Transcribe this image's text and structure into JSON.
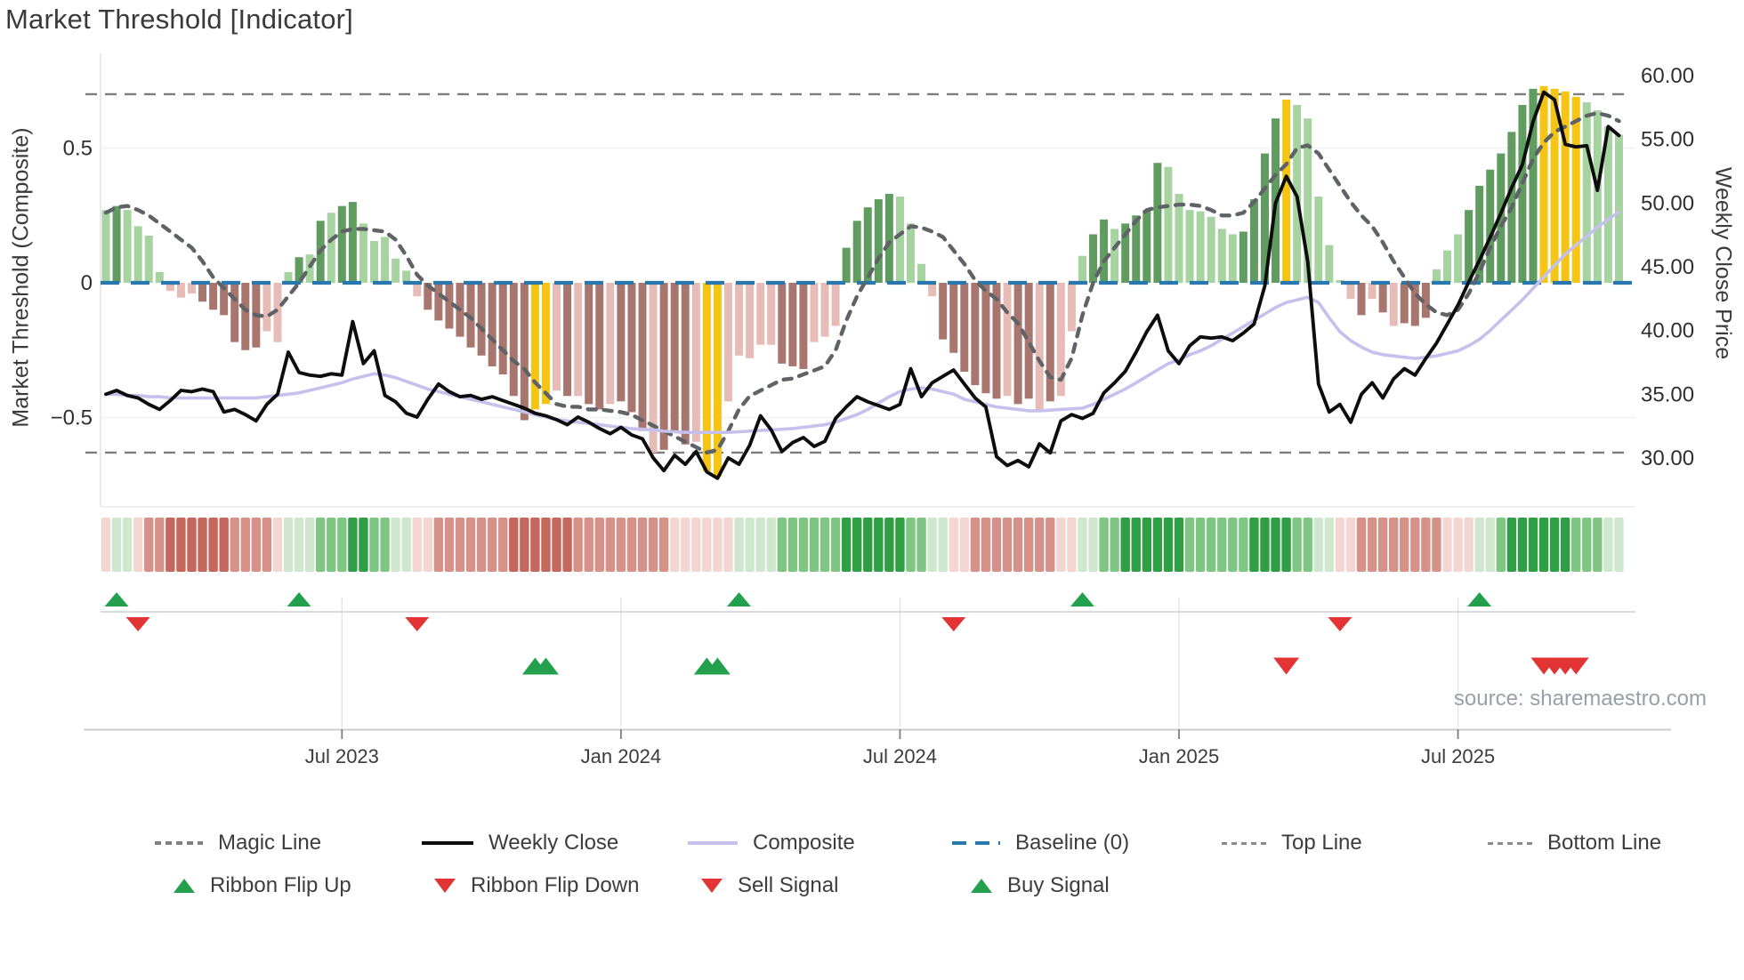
{
  "title": "Market Threshold [Indicator]",
  "source_note": "source: sharemaestro.com",
  "left_axis": {
    "label": "Market Threshold (Composite)",
    "ticks": [
      {
        "value": 0.5,
        "label": "0.5"
      },
      {
        "value": 0,
        "label": "0"
      },
      {
        "value": -0.5,
        "label": "−0.5"
      }
    ]
  },
  "right_axis": {
    "label": "Weekly Close Price",
    "ticks": [
      {
        "value": 60,
        "label": "60.00"
      },
      {
        "value": 55,
        "label": "55.00"
      },
      {
        "value": 50,
        "label": "50.00"
      },
      {
        "value": 45,
        "label": "45.00"
      },
      {
        "value": 40,
        "label": "40.00"
      },
      {
        "value": 35,
        "label": "35.00"
      },
      {
        "value": 30,
        "label": "30.00"
      }
    ]
  },
  "x_axis": {
    "ticks": [
      {
        "week": 22,
        "label": "Jul 2023"
      },
      {
        "week": 48,
        "label": "Jan 2024"
      },
      {
        "week": 74,
        "label": "Jul 2024"
      },
      {
        "week": 100,
        "label": "Jan 2025"
      },
      {
        "week": 126,
        "label": "Jul 2025"
      }
    ]
  },
  "reference_lines": {
    "baseline": 0,
    "top_line": 0.7,
    "bottom_line": -0.63
  },
  "colors": {
    "bar_light_green": "#a6d3a0",
    "bar_dark_green": "#609c60",
    "bar_yellow": "#f6c513",
    "bar_light_red": "#e8bcb6",
    "bar_dark_red": "#a8766e",
    "baseline_blue": "#2878af",
    "magic_gray": "#5f6267",
    "composite_lavender": "#c6c0ed",
    "weekly_black": "#0d0d0d",
    "ref_dash_gray": "#7d7d7d",
    "ribbon_red_pale": "#f3d6d2",
    "ribbon_red_mid": "#d69288",
    "ribbon_red_dark": "#c4675c",
    "ribbon_green_pale": "#cfe8cd",
    "ribbon_green_mid": "#7fc684",
    "ribbon_green_dark": "#2f9e44",
    "signal_green": "#22a04e",
    "signal_red": "#e23434"
  },
  "chart_data": {
    "type": "bar+line",
    "title": "Market Threshold [Indicator]",
    "weeks": 142,
    "ylabel_left": "Market Threshold (Composite)",
    "ylabel_right": "Weekly Close Price",
    "ylim_left": [
      -0.85,
      0.85
    ],
    "ylim_right": [
      26.0,
      61.5
    ],
    "grid": "horizontal-faint",
    "legend_position": "bottom",
    "bars": {
      "name": "Market Threshold histogram",
      "values": [
        0.27,
        0.285,
        0.27,
        0.21,
        0.175,
        0.04,
        -0.03,
        -0.055,
        -0.04,
        -0.07,
        -0.1,
        -0.12,
        -0.22,
        -0.25,
        -0.24,
        -0.18,
        -0.22,
        0.04,
        0.095,
        0.105,
        0.23,
        0.26,
        0.285,
        0.3,
        0.22,
        0.155,
        0.17,
        0.09,
        0.045,
        -0.05,
        -0.1,
        -0.14,
        -0.17,
        -0.2,
        -0.24,
        -0.27,
        -0.31,
        -0.34,
        -0.42,
        -0.51,
        -0.47,
        -0.45,
        -0.4,
        -0.42,
        -0.42,
        -0.45,
        -0.47,
        -0.45,
        -0.44,
        -0.48,
        -0.55,
        -0.63,
        -0.62,
        -0.55,
        -0.6,
        -0.59,
        -0.7,
        -0.72,
        -0.44,
        -0.27,
        -0.28,
        -0.23,
        -0.23,
        -0.3,
        -0.31,
        -0.32,
        -0.22,
        -0.2,
        -0.16,
        0.13,
        0.23,
        0.28,
        0.31,
        0.33,
        0.32,
        0.22,
        0.07,
        -0.05,
        -0.21,
        -0.26,
        -0.33,
        -0.38,
        -0.41,
        -0.43,
        -0.42,
        -0.45,
        -0.43,
        -0.47,
        -0.44,
        -0.42,
        -0.18,
        0.1,
        0.18,
        0.235,
        0.2,
        0.22,
        0.25,
        0.27,
        0.445,
        0.43,
        0.33,
        0.27,
        0.265,
        0.245,
        0.2,
        0.18,
        0.19,
        0.31,
        0.48,
        0.61,
        0.68,
        0.66,
        0.61,
        0.32,
        0.14,
        0.01,
        -0.06,
        -0.12,
        -0.06,
        -0.11,
        -0.16,
        -0.15,
        -0.16,
        -0.13,
        0.05,
        0.12,
        0.18,
        0.27,
        0.36,
        0.42,
        0.48,
        0.56,
        0.66,
        0.72,
        0.73,
        0.72,
        0.71,
        0.69,
        0.67,
        0.64,
        0.58,
        0.55
      ],
      "color_tokens": [
        "lg",
        "dg",
        "lg",
        "lg",
        "lg",
        "lg",
        "lr",
        "lr",
        "lr",
        "dr",
        "dr",
        "dr",
        "dr",
        "dr",
        "dr",
        "lr",
        "lr",
        "lg",
        "dg",
        "lg",
        "dg",
        "lg",
        "dg",
        "dg",
        "lg",
        "lg",
        "lg",
        "lg",
        "lg",
        "lr",
        "dr",
        "dr",
        "dr",
        "dr",
        "dr",
        "dr",
        "dr",
        "dr",
        "dr",
        "dr",
        "yl",
        "yl",
        "lr",
        "dr",
        "lr",
        "dr",
        "dr",
        "lr",
        "dr",
        "dr",
        "dr",
        "lr",
        "dr",
        "dr",
        "dr",
        "lr",
        "yl",
        "yl",
        "lr",
        "lr",
        "lr",
        "lr",
        "lr",
        "dr",
        "dr",
        "dr",
        "lr",
        "lr",
        "lr",
        "dg",
        "dg",
        "dg",
        "dg",
        "dg",
        "lg",
        "lg",
        "lg",
        "lr",
        "dr",
        "dr",
        "dr",
        "dr",
        "dr",
        "dr",
        "lr",
        "dr",
        "dr",
        "lr",
        "dr",
        "lr",
        "lr",
        "lg",
        "dg",
        "dg",
        "lg",
        "dg",
        "dg",
        "dg",
        "dg",
        "lg",
        "lg",
        "lg",
        "lg",
        "lg",
        "lg",
        "lg",
        "dg",
        "dg",
        "dg",
        "dg",
        "yl",
        "lg",
        "lg",
        "lg",
        "lg",
        "lg",
        "lr",
        "dr",
        "lr",
        "dr",
        "lr",
        "dr",
        "dr",
        "dr",
        "lg",
        "lg",
        "lg",
        "dg",
        "dg",
        "dg",
        "dg",
        "dg",
        "dg",
        "dg",
        "yl",
        "yl",
        "yl",
        "yl",
        "lg",
        "lg",
        "lg",
        "lg"
      ]
    },
    "weekly_close": [
      35.0,
      35.3,
      34.9,
      34.7,
      34.2,
      33.8,
      34.5,
      35.3,
      35.2,
      35.4,
      35.2,
      33.6,
      33.8,
      33.4,
      32.9,
      34.2,
      35.0,
      38.3,
      36.7,
      36.5,
      36.4,
      36.6,
      36.5,
      40.7,
      37.4,
      38.4,
      34.9,
      34.4,
      33.5,
      33.2,
      34.6,
      35.8,
      35.2,
      34.8,
      34.9,
      34.6,
      34.8,
      34.5,
      34.2,
      33.9,
      33.5,
      33.3,
      33.0,
      32.6,
      33.2,
      32.8,
      32.3,
      31.9,
      32.4,
      31.8,
      31.5,
      30.0,
      29.0,
      30.2,
      29.5,
      30.5,
      28.9,
      28.4,
      30.0,
      29.5,
      31.0,
      33.3,
      32.2,
      30.5,
      31.2,
      31.6,
      30.9,
      31.3,
      33.1,
      34.0,
      34.8,
      34.4,
      34.1,
      33.8,
      34.2,
      37.0,
      34.8,
      35.9,
      36.4,
      36.9,
      35.8,
      34.7,
      34.0,
      30.1,
      29.4,
      29.8,
      29.3,
      31.1,
      30.4,
      32.9,
      33.4,
      33.1,
      33.5,
      35.1,
      35.9,
      36.8,
      38.3,
      39.9,
      41.2,
      38.4,
      37.4,
      38.8,
      39.5,
      39.4,
      39.5,
      39.2,
      39.8,
      40.5,
      43.5,
      50.0,
      52.1,
      50.5,
      45.4,
      35.8,
      33.6,
      34.2,
      32.8,
      35.0,
      35.9,
      34.7,
      36.2,
      37.0,
      36.5,
      37.8,
      39.0,
      40.5,
      42.0,
      43.8,
      45.5,
      47.3,
      49.2,
      51.2,
      53.0,
      56.4,
      58.7,
      58.1,
      54.6,
      54.4,
      54.5,
      51.0,
      56.0,
      55.3
    ],
    "composite_line": [
      35.0,
      35.0,
      34.9,
      34.9,
      34.8,
      34.8,
      34.7,
      34.7,
      34.7,
      34.7,
      34.7,
      34.7,
      34.7,
      34.7,
      34.7,
      34.8,
      34.9,
      35.0,
      35.1,
      35.3,
      35.5,
      35.7,
      35.9,
      36.2,
      36.4,
      36.6,
      36.5,
      36.3,
      36.0,
      35.7,
      35.4,
      35.2,
      35.0,
      34.8,
      34.6,
      34.4,
      34.2,
      34.0,
      33.8,
      33.6,
      33.4,
      33.2,
      33.0,
      32.9,
      32.8,
      32.7,
      32.6,
      32.5,
      32.4,
      32.3,
      32.25,
      32.2,
      32.1,
      32.05,
      32.0,
      32.0,
      32.0,
      32.0,
      32.0,
      32.05,
      32.1,
      32.15,
      32.2,
      32.25,
      32.3,
      32.4,
      32.5,
      32.6,
      32.8,
      33.1,
      33.4,
      33.8,
      34.3,
      34.8,
      35.2,
      35.4,
      35.5,
      35.4,
      35.2,
      35.0,
      34.6,
      34.4,
      34.2,
      34.0,
      33.9,
      33.8,
      33.7,
      33.7,
      33.75,
      33.8,
      33.85,
      33.9,
      34.2,
      34.6,
      35.0,
      35.4,
      35.9,
      36.4,
      36.9,
      37.4,
      37.7,
      38.1,
      38.4,
      38.8,
      39.3,
      39.8,
      40.3,
      40.8,
      41.3,
      41.8,
      42.2,
      42.4,
      42.6,
      42.2,
      41.0,
      39.9,
      39.2,
      38.7,
      38.3,
      38.1,
      38.0,
      37.9,
      37.8,
      37.9,
      38.0,
      38.2,
      38.4,
      38.8,
      39.3,
      40.0,
      40.8,
      41.6,
      42.4,
      43.3,
      44.2,
      45.1,
      46.0,
      46.7,
      47.4,
      48.1,
      48.7,
      49.3
    ],
    "magic_line": [
      0.26,
      0.28,
      0.285,
      0.27,
      0.25,
      0.22,
      0.19,
      0.16,
      0.13,
      0.08,
      0.02,
      -0.02,
      -0.06,
      -0.1,
      -0.12,
      -0.125,
      -0.1,
      -0.05,
      0.0,
      0.06,
      0.12,
      0.16,
      0.19,
      0.2,
      0.2,
      0.195,
      0.19,
      0.16,
      0.1,
      0.03,
      -0.01,
      -0.04,
      -0.07,
      -0.1,
      -0.13,
      -0.17,
      -0.21,
      -0.25,
      -0.29,
      -0.32,
      -0.37,
      -0.41,
      -0.45,
      -0.46,
      -0.46,
      -0.47,
      -0.47,
      -0.475,
      -0.48,
      -0.49,
      -0.51,
      -0.53,
      -0.55,
      -0.57,
      -0.59,
      -0.61,
      -0.63,
      -0.62,
      -0.55,
      -0.47,
      -0.42,
      -0.4,
      -0.38,
      -0.36,
      -0.355,
      -0.34,
      -0.325,
      -0.31,
      -0.25,
      -0.14,
      -0.05,
      0.02,
      0.09,
      0.15,
      0.18,
      0.21,
      0.205,
      0.19,
      0.17,
      0.12,
      0.07,
      0.01,
      -0.03,
      -0.06,
      -0.11,
      -0.15,
      -0.22,
      -0.29,
      -0.35,
      -0.36,
      -0.28,
      -0.12,
      0.0,
      0.08,
      0.13,
      0.18,
      0.23,
      0.27,
      0.28,
      0.285,
      0.29,
      0.29,
      0.285,
      0.27,
      0.25,
      0.25,
      0.26,
      0.3,
      0.35,
      0.4,
      0.44,
      0.5,
      0.51,
      0.48,
      0.42,
      0.36,
      0.3,
      0.25,
      0.21,
      0.15,
      0.08,
      0.02,
      -0.04,
      -0.08,
      -0.11,
      -0.12,
      -0.1,
      -0.04,
      0.04,
      0.13,
      0.21,
      0.28,
      0.37,
      0.46,
      0.52,
      0.56,
      0.58,
      0.6,
      0.62,
      0.63,
      0.62,
      0.6
    ],
    "ribbon": [
      "r1",
      "g1",
      "g1",
      "r1",
      "r2",
      "r2",
      "r3",
      "r3",
      "r3",
      "r3",
      "r3",
      "r3",
      "r2",
      "r2",
      "r2",
      "r2",
      "r1",
      "g1",
      "g1",
      "g1",
      "g2",
      "g2",
      "g2",
      "g3",
      "g3",
      "g2",
      "g2",
      "g1",
      "g1",
      "r1",
      "r1",
      "r2",
      "r2",
      "r2",
      "r2",
      "r2",
      "r2",
      "r2",
      "r3",
      "r3",
      "r3",
      "r3",
      "r3",
      "r3",
      "r2",
      "r2",
      "r2",
      "r2",
      "r2",
      "r2",
      "r2",
      "r2",
      "r2",
      "r1",
      "r1",
      "r1",
      "r1",
      "r1",
      "r1",
      "g1",
      "g1",
      "g1",
      "g1",
      "g2",
      "g2",
      "g2",
      "g2",
      "g2",
      "g2",
      "g3",
      "g3",
      "g3",
      "g3",
      "g3",
      "g3",
      "g2",
      "g2",
      "g1",
      "g1",
      "r1",
      "r1",
      "r2",
      "r2",
      "r2",
      "r2",
      "r2",
      "r2",
      "r2",
      "r2",
      "r1",
      "r1",
      "g1",
      "g1",
      "g2",
      "g2",
      "g3",
      "g3",
      "g3",
      "g3",
      "g3",
      "g3",
      "g2",
      "g2",
      "g2",
      "g2",
      "g2",
      "g2",
      "g3",
      "g3",
      "g3",
      "g3",
      "g2",
      "g2",
      "g1",
      "g1",
      "r1",
      "r1",
      "r2",
      "r2",
      "r2",
      "r2",
      "r2",
      "r2",
      "r2",
      "r2",
      "r1",
      "r1",
      "r1",
      "g1",
      "g1",
      "g2",
      "g3",
      "g3",
      "g3",
      "g3",
      "g3",
      "g3",
      "g2",
      "g2",
      "g2",
      "g1",
      "g1"
    ],
    "signals": {
      "ribbon_flip_up_weeks": [
        1,
        18,
        59,
        91,
        128
      ],
      "ribbon_flip_down_weeks": [
        3,
        29,
        79,
        115
      ],
      "buy_signal_weeks": [
        40,
        41,
        56,
        57
      ],
      "sell_signal_weeks": [
        110,
        134,
        135,
        136,
        137
      ]
    }
  },
  "legend": {
    "row1": [
      {
        "label": "Magic Line",
        "swatch": "magic"
      },
      {
        "label": "Weekly Close",
        "swatch": "weekly"
      },
      {
        "label": "Composite",
        "swatch": "comp"
      },
      {
        "label": "Baseline (0)",
        "swatch": "base"
      },
      {
        "label": "Top Line",
        "swatch": "thin"
      },
      {
        "label": "Bottom Line",
        "swatch": "thin"
      }
    ],
    "row2": [
      {
        "label": "Ribbon Flip Up",
        "swatch": "tri-up"
      },
      {
        "label": "Ribbon Flip Down",
        "swatch": "tri-down"
      },
      {
        "label": "Sell Signal",
        "swatch": "tri-down"
      },
      {
        "label": "Buy Signal",
        "swatch": "tri-up"
      }
    ]
  }
}
